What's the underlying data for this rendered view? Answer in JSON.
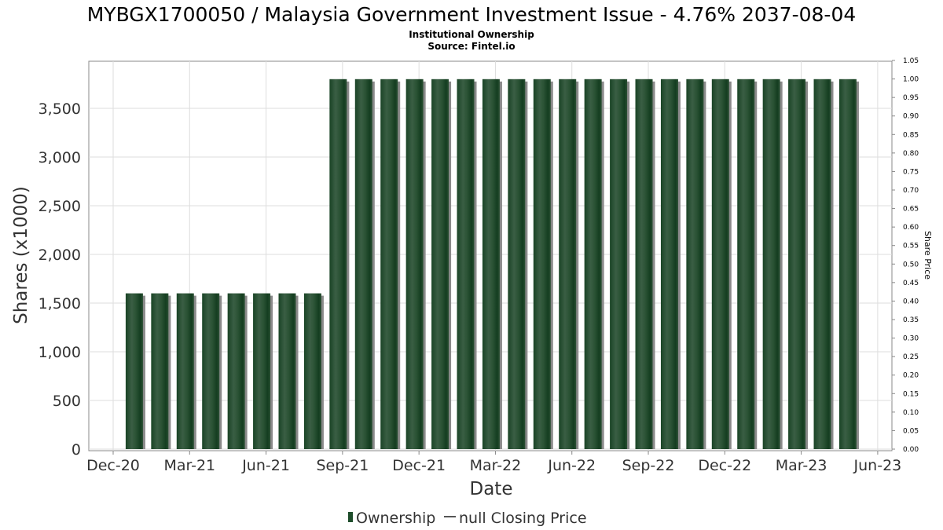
{
  "chart_data": {
    "type": "bar",
    "title": "MYBGX1700050 / Malaysia Government Investment Issue - 4.76% 2037-08-04",
    "subtitle": "Institutional Ownership",
    "source": "Source: Fintel.io",
    "xlabel": "Date",
    "ylabel": "Shares (x1000)",
    "y2label": "Share Price",
    "x_ticks": [
      "Dec-20",
      "Mar-21",
      "Jun-21",
      "Sep-21",
      "Dec-21",
      "Mar-22",
      "Jun-22",
      "Sep-22",
      "Dec-22",
      "Mar-23",
      "Jun-23"
    ],
    "y_ticks": [
      "0",
      "500",
      "1,000",
      "1,500",
      "2,000",
      "2,500",
      "3,000",
      "3,500"
    ],
    "y2_ticks": [
      "0.00",
      "0.05",
      "0.10",
      "0.15",
      "0.20",
      "0.25",
      "0.30",
      "0.35",
      "0.40",
      "0.45",
      "0.50",
      "0.55",
      "0.60",
      "0.65",
      "0.70",
      "0.75",
      "0.80",
      "0.85",
      "0.90",
      "0.95",
      "1.00",
      "1.05"
    ],
    "ylim": [
      0,
      3990
    ],
    "y2lim": [
      0,
      1.05
    ],
    "grid": true,
    "legend_position": "bottom",
    "series": [
      {
        "name": "Ownership",
        "color": "#1e4d2b",
        "categories": [
          "Jan-21",
          "Feb-21",
          "Mar-21",
          "Apr-21",
          "May-21",
          "Jun-21",
          "Jul-21",
          "Aug-21",
          "Sep-21",
          "Oct-21",
          "Nov-21",
          "Dec-21",
          "Jan-22",
          "Feb-22",
          "Mar-22",
          "Apr-22",
          "May-22",
          "Jun-22",
          "Jul-22",
          "Aug-22",
          "Sep-22",
          "Oct-22",
          "Nov-22",
          "Dec-22",
          "Jan-23",
          "Feb-23",
          "Mar-23",
          "Apr-23",
          "May-23"
        ],
        "values": [
          1600,
          1600,
          1600,
          1600,
          1600,
          1600,
          1600,
          1600,
          3800,
          3800,
          3800,
          3800,
          3800,
          3800,
          3800,
          3800,
          3800,
          3800,
          3800,
          3800,
          3800,
          3800,
          3800,
          3800,
          3800,
          3800,
          3800,
          3800,
          3800
        ]
      },
      {
        "name": "null Closing Price",
        "color": "#555555",
        "values": []
      }
    ]
  }
}
